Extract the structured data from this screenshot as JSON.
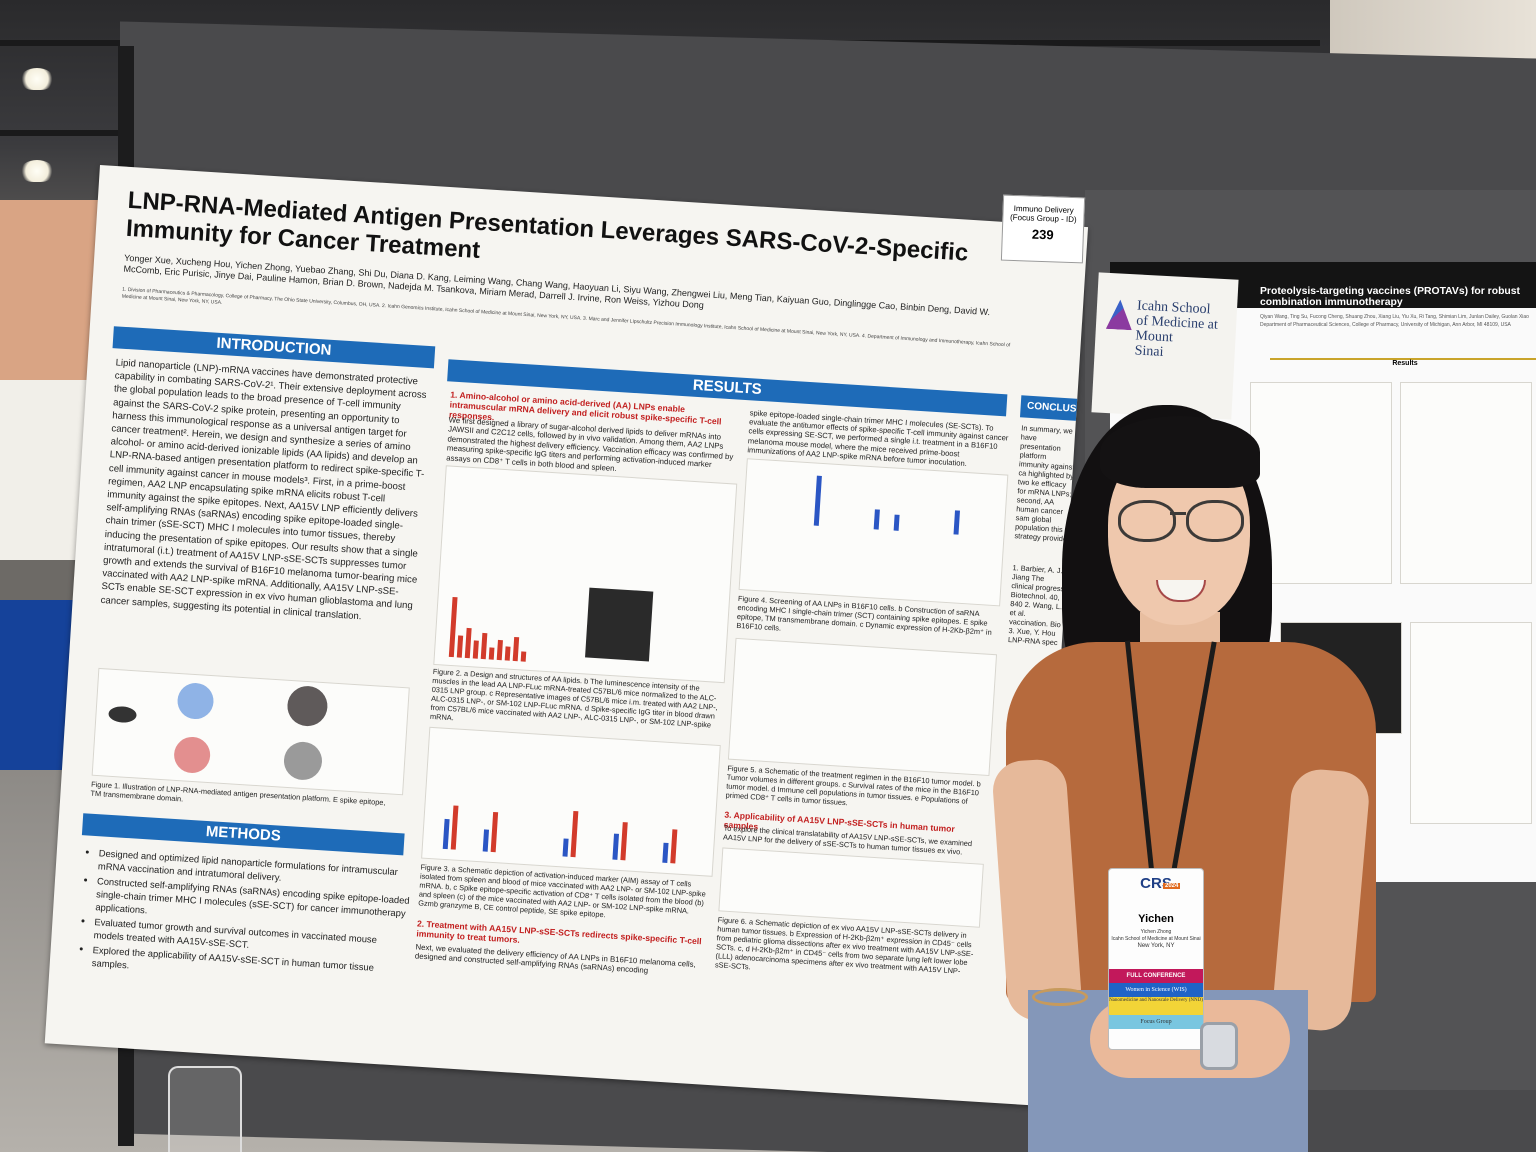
{
  "poster": {
    "title": "LNP-RNA-Mediated Antigen Presentation Leverages SARS-CoV-2-Specific Immunity for Cancer Treatment",
    "authors": "Yonger Xue, Xucheng Hou, Yichen Zhong, Yuebao Zhang, Shi Du, Diana D. Kang, Leiming Wang, Chang Wang, Haoyuan Li, Siyu Wang, Zhengwei Liu, Meng Tian, Kaiyuan Guo, Dinglingge Cao, Binbin Deng, David W. McComb, Eric Purisic, Jinye Dai, Pauline Hamon, Brian D. Brown, Nadejda M. Tsankova, Miriam Merad, Darrell J. Irvine, Ron Weiss, Yizhou Dong",
    "affiliations": "1. Division of Pharmaceutics & Pharmacology, College of Pharmacy, The Ohio State University, Columbus, OH, USA. 2. Icahn Genomics Institute, Icahn School of Medicine at Mount Sinai, New York, NY, USA. 3. Marc and Jennifer Lipschultz Precision Immunology Institute, Icahn School of Medicine at Mount Sinai, New York, NY, USA. 4. Department of Immunology and Immunotherapy, Icahn School of Medicine at Mount Sinai, New York, NY, USA.",
    "introduction_heading": "INTRODUCTION",
    "introduction_text": "Lipid nanoparticle (LNP)-mRNA vaccines have demonstrated protective capability in combating SARS-CoV-2¹. Their extensive deployment across the global population leads to the broad presence of T-cell immunity against the SARS-CoV-2 spike protein, presenting an opportunity to harness this immunological response as a universal antigen target for cancer treatment². Herein, we design and synthesize a series of amino alcohol- or amino acid-derived ionizable lipids (AA lipids) and develop an LNP-RNA-based antigen presentation platform to redirect spike-specific T-cell immunity against cancer in mouse models³. First, in a prime-boost regimen, AA2 LNP encapsulating spike mRNA elicits robust T-cell immunity against the spike epitopes. Next, AA15V LNP efficiently delivers self-amplifying RNAs (saRNAs) encoding spike epitope-loaded single-chain trimer (sSE-SCT) MHC I molecules into tumor tissues, thereby inducing the presentation of spike epitopes. Our results show that a single intratumoral (i.t.) treatment of AA15V LNP-sSE-SCTs suppresses tumor growth and extends the survival of B16F10 melanoma tumor-bearing mice vaccinated with AA2 LNP-spike mRNA. Additionally, AA15V LNP-sSE-SCTs enable SE-SCT expression in ex vivo human glioblastoma and lung cancer samples, suggesting its potential in clinical translation.",
    "figure1_caption": "Figure 1. Illustration of LNP-RNA-mediated antigen presentation platform. E spike epitope, TM transmembrane domain.",
    "methods_heading": "METHODS",
    "methods_items": [
      "Designed and optimized lipid nanoparticle formulations for intramuscular mRNA vaccination and intratumoral delivery.",
      "Constructed self-amplifying RNAs (saRNAs) encoding spike epitope-loaded single-chain trimer MHC I molecules (sSE-SCT) for cancer immunotherapy applications.",
      "Evaluated tumor growth and survival outcomes in vaccinated mouse models treated with AA15V-sSE-SCT.",
      "Explored the applicability of AA15V-sSE-SCT in human tumor tissue samples."
    ],
    "results_heading": "RESULTS",
    "results_sub1": "1. Amino-alcohol or amino acid-derived (AA) LNPs enable intramuscular mRNA delivery and elicit robust spike-specific T-cell responses.",
    "results_text1": "We first designed a library of sugar-alcohol derived lipids to deliver mRNAs into JAWSII and C2C12 cells, followed by in vivo validation. Among them, AA2 LNPs demonstrated the highest delivery efficiency. Vaccination efficacy was confirmed by measuring spike-specific IgG titers and performing activation-induced marker assays on CD8⁺ T cells in both blood and spleen.",
    "figure2_caption": "Figure 2. a Design and structures of AA lipids. b The luminescence intensity of the muscles in the lead AA LNP-FLuc mRNA-treated C57BL/6 mice normalized to the ALC-0315 LNP group. c Representative images of C57BL/6 mice i.m. treated with AA2 LNP-, ALC-0315 LNP-, or SM-102 LNP-FLuc mRNA. d Spike-specific IgG titer in blood drawn from C57BL/6 mice vaccinated with AA2 LNP-, ALC-0315 LNP-, or SM-102 LNP-spike mRNA.",
    "figure3_caption": "Figure 3. a Schematic depiction of activation-induced marker (AIM) assay of T cells isolated from spleen and blood of mice vaccinated with AA2 LNP- or SM-102 LNP-spike mRNA. b, c Spike epitope-specific activation of CD8⁺ T cells isolated from the blood (b) and spleen (c) of the mice vaccinated with AA2 LNP- or SM-102 LNP-spike mRNA. Gzmb granzyme B, CE control peptide, SE spike epitope.",
    "results_sub2": "2. Treatment with AA15V LNP-sSE-SCTs redirects spike-specific T-cell immunity to treat tumors.",
    "results_text2": "Next, we evaluated the delivery efficiency of AA LNPs in B16F10 melanoma cells, designed and constructed self-amplifying RNAs (saRNAs) encoding",
    "results_text2b": "spike epitope-loaded single-chain trimer MHC I molecules (SE-SCTs). To evaluate the antitumor effects of spike-specific T-cell immunity against cancer cells expressing SE-SCT, we performed a single i.t. treatment in a B16F10 melanoma mouse model, where the mice received prime-boost immunizations of AA2 LNP-spike mRNA before tumor inoculation.",
    "figure4_caption": "Figure 4. Screening of AA LNPs in B16F10 cells. b Construction of saRNA encoding MHC I single-chain trimer (SCT) containing spike epitopes. E spike epitope, TM transmembrane domain. c Dynamic expression of H-2Kb-β2m⁺ in B16F10 cells.",
    "figure5_caption": "Figure 5. a Schematic of the treatment regimen in the B16F10 tumor model. b Tumor volumes in different groups. c Survival rates of the mice in the B16F10 tumor model. d Immune cell populations in tumor tissues. e Populations of primed CD8⁺ T cells in tumor tissues.",
    "results_sub3": "3. Applicability of AA15V LNP-sSE-SCTs in human tumor samples",
    "results_text3": "To explore the clinical translatability of AA15V LNP-sSE-SCTs, we examined AA15V LNP for the delivery of sSE-SCTs to human tumor tissues ex vivo.",
    "figure6_caption": "Figure 6. a Schematic depiction of ex vivo AA15V LNP-sSE-SCTs delivery in human tumor tissues. b Expression of H-2Kb-β2m⁺ expression in CD45⁻ cells from pediatric glioma dissections after ex vivo treatment with AA15V LNP-sSE-SCTs. c, d H-2Kb-β2m⁺ in CD45⁻ cells from two separate lung left lower lobe (LLL) adenocarcinoma specimens after ex vivo treatment with AA15V LNP-sSE-SCTs.",
    "conclusion_heading": "CONCLUSION",
    "conclusion_text": "In summary, we have presentation platform immunity against ca highlighted by two ke efficacy for mRNA LNPs; second, AA human cancer sam global population this strategy provide",
    "references": "1. Barbier, A. J., Jiang The clinical progress Biotechnol. 40, 840 2. Wang, L. et al. vaccination. Bio 3. Xue, Y. Hou LNP-RNA spec"
  },
  "tag": {
    "line1": "Immuno Delivery",
    "line2": "(Focus Group - ID)",
    "number": "239"
  },
  "logo": {
    "line1": "Icahn School",
    "line2": "of Medicine at",
    "line3": "Mount",
    "line4": "Sinai"
  },
  "poster2": {
    "title": "Proteolysis-targeting vaccines (PROTAVs) for robust combination immunotherapy",
    "authors": "Qiyan Wang, Ting Su, Fucong Cheng, Shuang Zhou, Xiang Liu, Yiu Xu, Ri Tang, Shimian Lim, Junlan Dailey, Guolan Xiao",
    "affiliation": "Department of Pharmaceutical Sciences, College of Pharmacy, University of Michigan, Ann Arbor, MI 48109, USA",
    "results_heading": "Results"
  },
  "badge": {
    "logo": "CRS",
    "year": "2024",
    "name": "Yichen",
    "fullname": "Yichen Zhong",
    "affiliation": "Icahn School of Medicine at Mount Sinai",
    "location": "New York, NY",
    "ribbon1": "FULL CONFERENCE",
    "ribbon2": "Women in Science (WIS)",
    "ribbon3": "Nanomedicine and Nanoscale Delivery (NND)",
    "ribbon4": "Focus Group"
  },
  "colors": {
    "heading_blue": "#1e6bb8",
    "accent_red": "#c21f1f",
    "shirt": "#b66a3d"
  }
}
